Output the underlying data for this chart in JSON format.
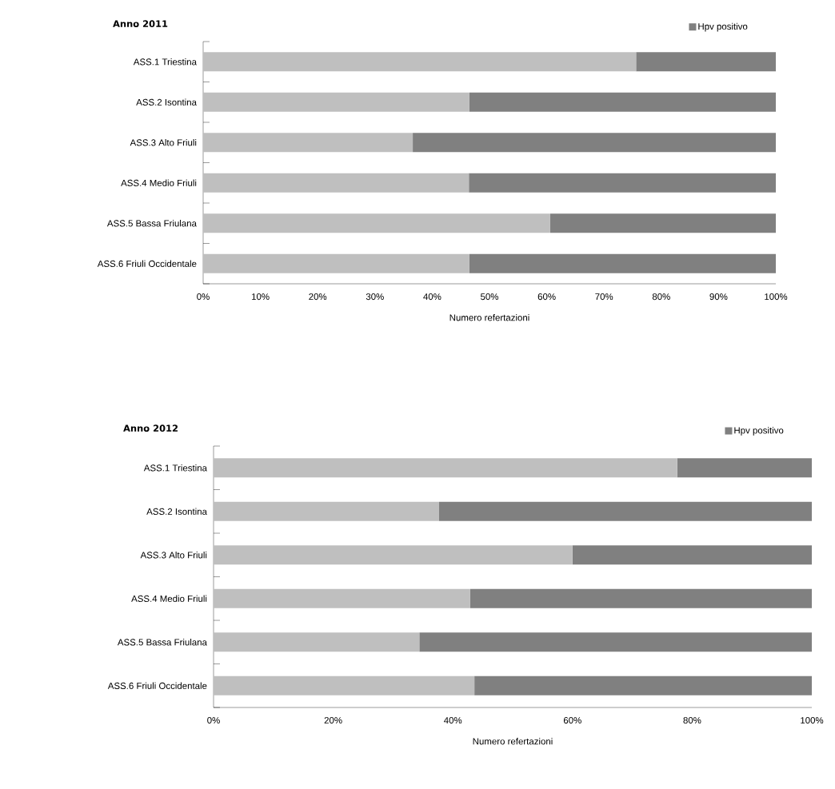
{
  "chart_data": [
    {
      "type": "bar",
      "orientation": "horizontal",
      "stacked": true,
      "title": "Anno 2011",
      "xlabel": "Numero refertazioni",
      "legend": "top right",
      "categories": [
        "ASS.1 Triestina",
        "ASS.2 Isontina",
        "ASS.3 Alto Friuli",
        "ASS.4 Medio Friuli",
        "ASS.5 Bassa Friulana",
        "ASS.6 Friuli Occidentale"
      ],
      "series": [
        {
          "color": "#bfbfbf",
          "values": [
            75.6,
            46.5,
            36.6,
            46.4,
            60.6,
            46.5
          ]
        },
        {
          "name": "Hpv positivo",
          "color": "#808080",
          "values": [
            24.4,
            53.5,
            63.4,
            53.6,
            39.4,
            53.5
          ]
        }
      ],
      "xlim": [
        0,
        100
      ],
      "xticks": [
        {
          "value": 0,
          "label": "0%"
        },
        {
          "value": 10,
          "label": "10%"
        },
        {
          "value": 20,
          "label": "20%"
        },
        {
          "value": 30,
          "label": "30%"
        },
        {
          "value": 40,
          "label": "40%"
        },
        {
          "value": 50,
          "label": "50%"
        },
        {
          "value": 60,
          "label": "60%"
        },
        {
          "value": 70,
          "label": "70%"
        },
        {
          "value": 80,
          "label": "80%"
        },
        {
          "value": 90,
          "label": "90%"
        },
        {
          "value": 100,
          "label": "100%"
        }
      ]
    },
    {
      "type": "bar",
      "orientation": "horizontal",
      "stacked": true,
      "title": "Anno 2012",
      "xlabel": "Numero refertazioni",
      "legend": "top right",
      "categories": [
        "ASS.1 Triestina",
        "ASS.2 Isontina",
        "ASS.3 Alto Friuli",
        "ASS.4 Medio Friuli",
        "ASS.5 Bassa Friulana",
        "ASS.6 Friuli Occidentale"
      ],
      "series": [
        {
          "color": "#bfbfbf",
          "values": [
            77.5,
            37.7,
            60.0,
            42.9,
            34.4,
            43.6
          ]
        },
        {
          "name": "Hpv positivo",
          "color": "#808080",
          "values": [
            22.5,
            62.3,
            40.0,
            57.1,
            65.6,
            56.4
          ]
        }
      ],
      "xlim": [
        0,
        100
      ],
      "xticks": [
        {
          "value": 0,
          "label": "0%"
        },
        {
          "value": 20,
          "label": "20%"
        },
        {
          "value": 40,
          "label": "40%"
        },
        {
          "value": 60,
          "label": "60%"
        },
        {
          "value": 80,
          "label": "80%"
        },
        {
          "value": 100,
          "label": "100%"
        }
      ]
    }
  ]
}
